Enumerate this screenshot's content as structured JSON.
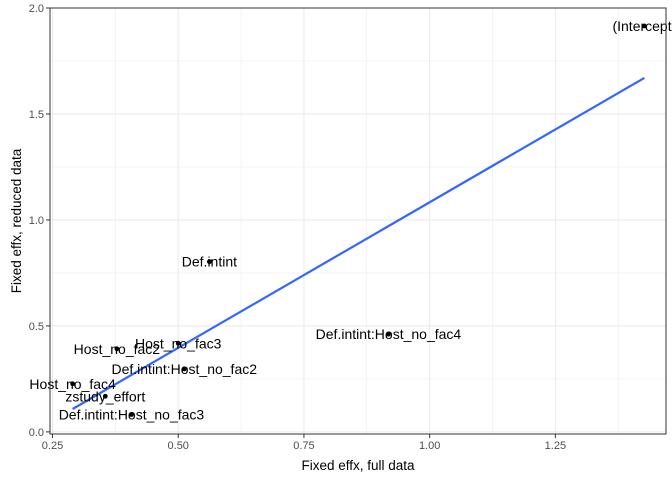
{
  "chart_data": {
    "type": "scatter",
    "xlabel": "Fixed effx, full data",
    "ylabel": "Fixed effx, reduced data",
    "xlim": [
      0.245,
      1.47
    ],
    "ylim": [
      -0.01,
      2.0
    ],
    "x_ticks": [
      0.25,
      0.5,
      0.75,
      1.0,
      1.25
    ],
    "x_tick_labels": [
      "0.25",
      "0.50",
      "0.75",
      "1.00",
      "1.25"
    ],
    "y_ticks": [
      0.0,
      0.5,
      1.0,
      1.5,
      2.0
    ],
    "y_tick_labels": [
      "0.0",
      "0.5",
      "1.0",
      "1.5",
      "2.0"
    ],
    "grid": true,
    "points": [
      {
        "label": "(Intercept)",
        "x": 1.427,
        "y": 1.915
      },
      {
        "label": "Def.intint",
        "x": 0.562,
        "y": 0.803
      },
      {
        "label": "Def.intint:Host_no_fac4",
        "x": 0.918,
        "y": 0.461
      },
      {
        "label": "Host_no_fac3",
        "x": 0.5,
        "y": 0.418
      },
      {
        "label": "Host_no_fac2",
        "x": 0.378,
        "y": 0.392
      },
      {
        "label": "Def.intint:Host_no_fac2",
        "x": 0.512,
        "y": 0.297
      },
      {
        "label": "Host_no_fac4",
        "x": 0.29,
        "y": 0.227
      },
      {
        "label": "zstudy_effort",
        "x": 0.355,
        "y": 0.168
      },
      {
        "label": "Def.intint:Host_no_fac3",
        "x": 0.407,
        "y": 0.082
      }
    ],
    "fit_line": {
      "x": [
        0.29,
        1.427
      ],
      "y": [
        0.108,
        1.67
      ],
      "color": "#3366ff"
    },
    "colors": {
      "panel_border": "#333333",
      "grid": "#ebebeb",
      "point": "#000000",
      "fit": "#3366ff"
    }
  }
}
